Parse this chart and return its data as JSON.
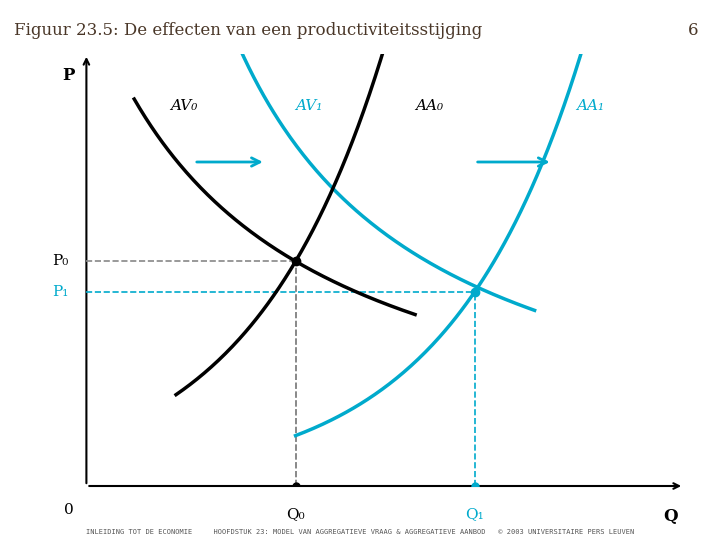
{
  "title": "Figuur 23.5: De effecten van een productiviteitsstijging",
  "page_number": "6",
  "background_color": "#ffffff",
  "title_color": "#4a3728",
  "header_line_color": "#8B7355",
  "footer_text": "INLEIDING TOT DE ECONOMIE     HOOFDSTUK 23: MODEL VAN AGGREGATIEVE VRAAG & AGGREGATIEVE AANBOD   © 2003 UNIVERSITAIRE PERS LEUVEN",
  "black_color": "#000000",
  "cyan_color": "#00AACC",
  "axis_label_P": "P",
  "axis_label_Q": "Q",
  "origin_label": "0",
  "curve_labels": {
    "AV0": "AV₀",
    "AV1": "AV₁",
    "AA0": "AA₀",
    "AA1": "AA₁"
  },
  "point_labels": {
    "P0": "P₀",
    "P1": "P₁",
    "Q0": "Q₀",
    "Q1": "Q₁"
  },
  "xlim": [
    0,
    10
  ],
  "ylim": [
    0,
    10
  ],
  "Q0": 3.5,
  "Q1": 6.5,
  "P0": 5.2,
  "P1": 4.5
}
